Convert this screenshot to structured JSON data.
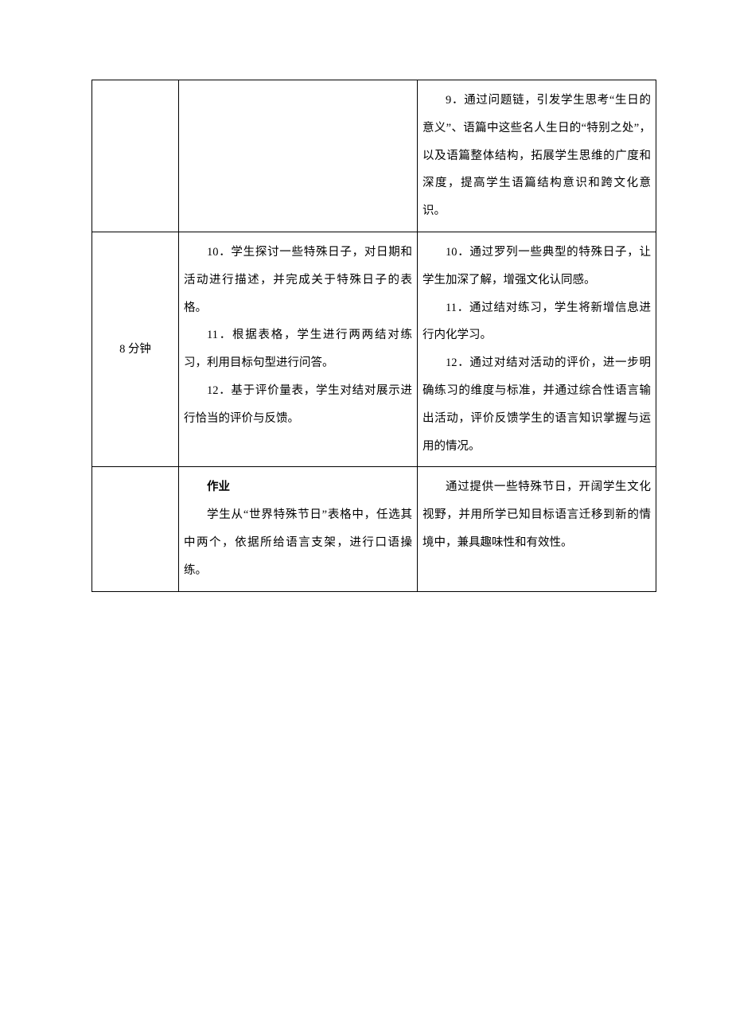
{
  "table": {
    "rows": [
      {
        "col1": "",
        "col2": [],
        "col3": [
          {
            "text": "9．通过问题链，引发学生思考“生日的意义”、语篇中这些名人生日的“特别之处”，以及语篇整体结构，拓展学生思维的广度和深度，提高学生语篇结构意识和跨文化意识。",
            "bold": false
          }
        ]
      },
      {
        "col1": "8 分钟",
        "col2": [
          {
            "text": "10．学生探讨一些特殊日子，对日期和活动进行描述，并完成关于特殊日子的表格。",
            "bold": false
          },
          {
            "text": "11．根据表格，学生进行两两结对练习，利用目标句型进行问答。",
            "bold": false
          },
          {
            "text": "12．基于评价量表，学生对结对展示进行恰当的评价与反馈。",
            "bold": false
          }
        ],
        "col3": [
          {
            "text": "10．通过罗列一些典型的特殊日子，让学生加深了解，增强文化认同感。",
            "bold": false
          },
          {
            "text": "11．通过结对练习，学生将新增信息进行内化学习。",
            "bold": false
          },
          {
            "text": "12．通过对结对活动的评价，进一步明确练习的维度与标准，并通过综合性语言输出活动，评价反馈学生的语言知识掌握与运用的情况。",
            "bold": false
          }
        ]
      },
      {
        "col1": "",
        "col2": [
          {
            "text": "作业",
            "bold": true
          },
          {
            "text": "学生从“世界特殊节日”表格中，任选其中两个，依据所给语言支架，进行口语操练。",
            "bold": false
          }
        ],
        "col3": [
          {
            "text": "通过提供一些特殊节日，开阔学生文化视野，并用所学已知目标语言迁移到新的情境中，兼具趣味性和有效性。",
            "bold": false
          }
        ]
      }
    ]
  }
}
